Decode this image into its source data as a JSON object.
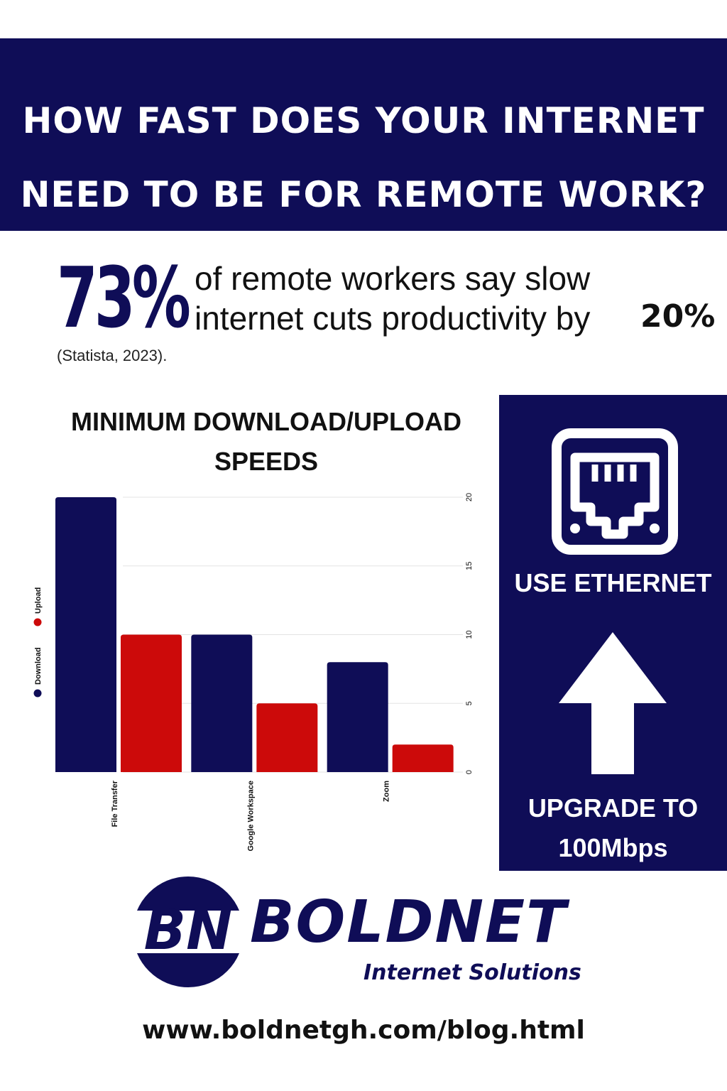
{
  "header": {
    "title_line1": "HOW FAST DOES YOUR INTERNET",
    "title_line2": "NEED TO BE FOR REMOTE WORK?"
  },
  "stat": {
    "big": "73%",
    "line1": "of remote workers say slow",
    "line2": "internet cuts productivity by",
    "pct": "20%",
    "source": "(Statista, 2023)."
  },
  "side": {
    "ethernet_label": "USE ETHERNET",
    "upgrade_line1": "UPGRADE TO",
    "upgrade_line2": "100Mbps",
    "icons": [
      "ethernet-port-icon",
      "arrow-up-icon"
    ]
  },
  "brand": {
    "name": "BOLDNET",
    "tagline": "Internet Solutions",
    "logo_letters": "BN",
    "url": "www.boldnetgh.com/blog.html"
  },
  "colors": {
    "navy": "#0f0d57",
    "red": "#cc0a0a",
    "white": "#ffffff"
  },
  "chart_data": {
    "type": "bar",
    "title": "MINIMUM DOWNLOAD/UPLOAD SPEEDS",
    "categories": [
      "File Transfer",
      "Google Workspace",
      "Zoom"
    ],
    "series": [
      {
        "name": "Download",
        "values": [
          20,
          10,
          8
        ],
        "color": "#0f0d57"
      },
      {
        "name": "Upload",
        "values": [
          10,
          5,
          2
        ],
        "color": "#cc0a0a"
      }
    ],
    "ylim": [
      0,
      20
    ],
    "yticks": [
      0,
      5,
      10,
      15,
      20
    ],
    "grid": true,
    "legend": "left"
  }
}
